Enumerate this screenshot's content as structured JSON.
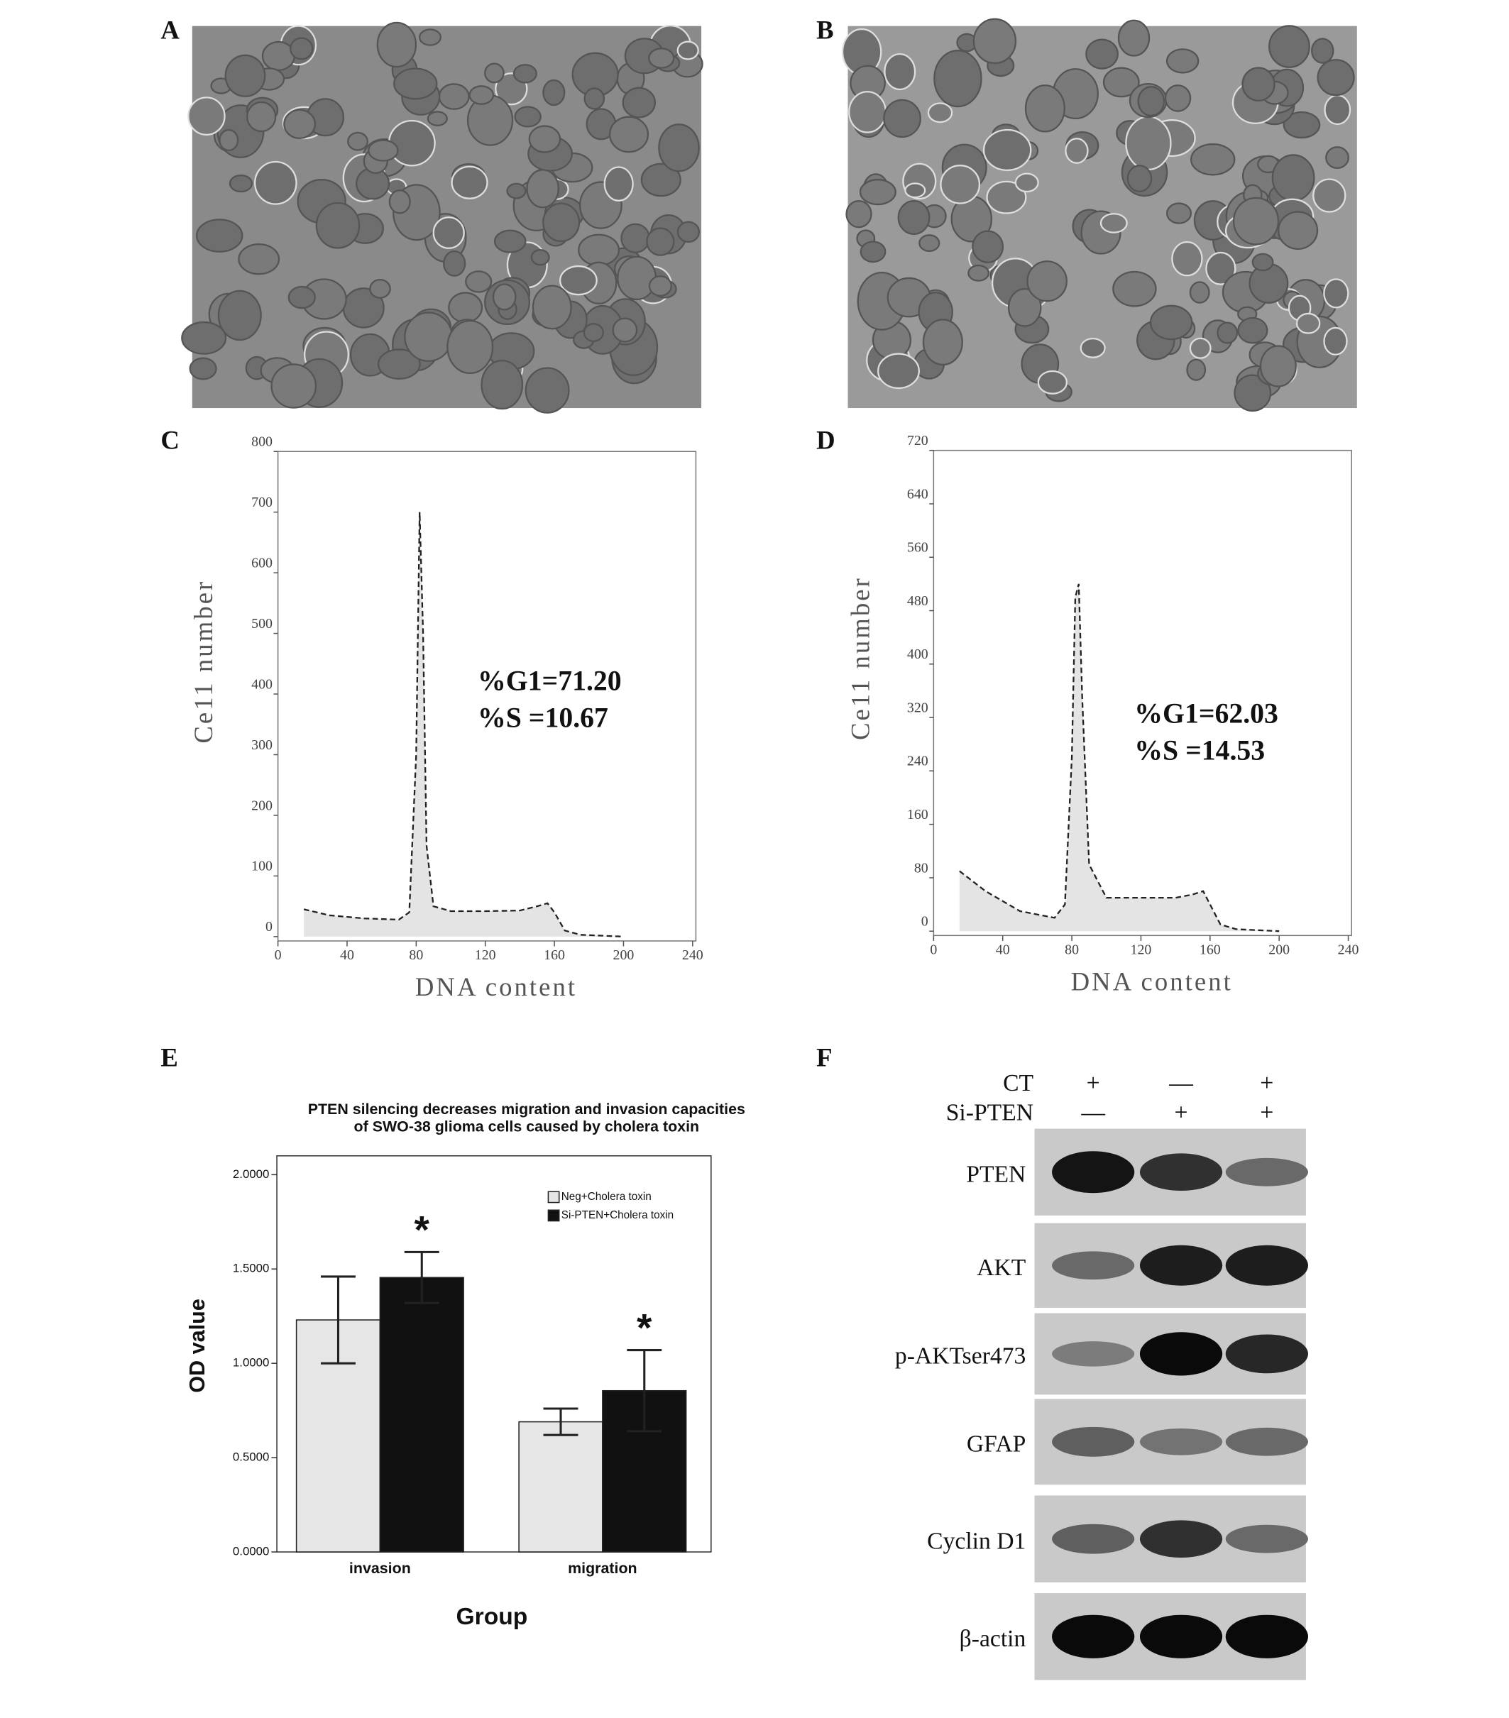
{
  "panels": [
    "A",
    "B",
    "C",
    "D",
    "E",
    "F"
  ],
  "chart_data": [
    {
      "type": "line",
      "color": "#222",
      "x": [
        15,
        30,
        50,
        70,
        76,
        80,
        82,
        84,
        86,
        90,
        100,
        120,
        140,
        150,
        156,
        160,
        166,
        175,
        200
      ],
      "values": [
        45,
        35,
        30,
        28,
        40,
        300,
        700,
        500,
        150,
        50,
        42,
        42,
        43,
        50,
        55,
        40,
        10,
        3,
        0
      ],
      "xlim": [
        0,
        240
      ],
      "ylim": [
        0,
        800
      ],
      "xticks": [
        0,
        40,
        80,
        120,
        160,
        200,
        240
      ],
      "yticks": [
        0,
        100,
        200,
        300,
        400,
        500,
        600,
        700,
        800
      ],
      "xlabel": "DNA content",
      "ylabel": "Ce11 number",
      "annotations": [
        "%G1=71.20",
        "%S =10.67"
      ]
    },
    {
      "type": "line",
      "color": "#222",
      "x": [
        15,
        30,
        50,
        70,
        76,
        80,
        82,
        84,
        86,
        90,
        100,
        120,
        140,
        150,
        156,
        160,
        166,
        175,
        200
      ],
      "values": [
        90,
        60,
        30,
        20,
        40,
        260,
        500,
        520,
        350,
        100,
        50,
        50,
        50,
        55,
        60,
        40,
        10,
        3,
        0
      ],
      "xlim": [
        0,
        240
      ],
      "ylim": [
        0,
        720
      ],
      "xticks": [
        0,
        40,
        80,
        120,
        160,
        200,
        240
      ],
      "yticks": [
        0,
        80,
        160,
        240,
        320,
        400,
        480,
        560,
        640,
        720
      ],
      "xlabel": "DNA content",
      "ylabel": "Ce11 number",
      "annotations": [
        "%G1=62.03",
        "%S =14.53"
      ]
    },
    {
      "type": "bar",
      "title": [
        "PTEN silencing decreases migration and invasion capacities",
        "of SWO-38 glioma cells caused by cholera toxin"
      ],
      "categories": [
        "invasion",
        "migration"
      ],
      "series": [
        {
          "name": "Neg+Cholera toxin",
          "color": "#e6e6e6",
          "values": [
            1.23,
            0.69
          ],
          "errors": [
            0.23,
            0.07
          ]
        },
        {
          "name": "Si-PTEN+Cholera toxin",
          "color": "#111111",
          "values": [
            1.455,
            0.855
          ],
          "errors": [
            0.135,
            0.215
          ]
        }
      ],
      "ylim": [
        0,
        2.1
      ],
      "yticks": [
        {
          "value": 0,
          "label": "0.0000"
        },
        {
          "value": 0.5,
          "label": "0.5000"
        },
        {
          "value": 1,
          "label": "1.0000"
        },
        {
          "value": 1.5,
          "label": "1.5000"
        },
        {
          "value": 2,
          "label": "2.0000"
        }
      ],
      "xlabel": "Group",
      "ylabel": "OD value",
      "significance": [
        "*",
        "*"
      ]
    }
  ],
  "blot": {
    "conditions": [
      {
        "label": "CT",
        "signs": [
          "+",
          "—",
          "+"
        ]
      },
      {
        "label": "Si-PTEN",
        "signs": [
          "—",
          "+",
          "+"
        ]
      }
    ],
    "proteins": [
      "PTEN",
      "AKT",
      "p-AKTser473",
      "GFAP",
      "Cyclin D1",
      "β-actin"
    ]
  }
}
